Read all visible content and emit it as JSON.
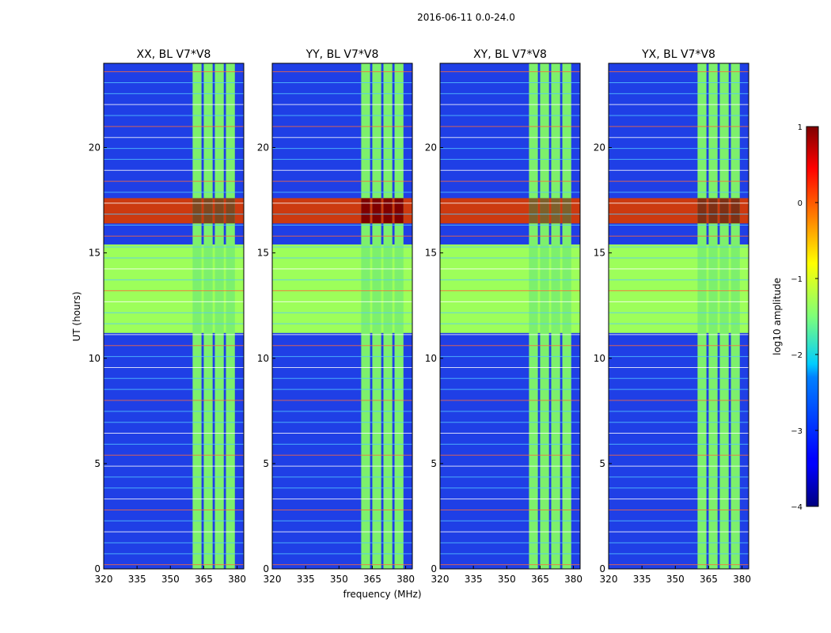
{
  "figure": {
    "suptitle": "2016-06-11 0.0-24.0"
  },
  "chart_data": {
    "type": "heatmap",
    "shared": {
      "xlabel": "frequency (MHz)",
      "ylabel": "UT (hours)",
      "xlim": [
        320,
        383
      ],
      "ylim": [
        0,
        24
      ],
      "xticks": [
        320,
        335,
        350,
        365,
        380
      ],
      "yticks": [
        0,
        5,
        10,
        15,
        20
      ],
      "channel_blocks_mhz": [
        [
          360,
          364
        ],
        [
          365,
          369
        ],
        [
          370,
          374
        ],
        [
          375,
          379
        ]
      ],
      "band_hours": [
        [
          11.2,
          15.4
        ],
        [
          16.4,
          17.6
        ]
      ]
    },
    "panels": [
      {
        "title": "XX, BL V7*V8",
        "strong": 0.7
      },
      {
        "title": "YY, BL V7*V8",
        "strong": 1.0
      },
      {
        "title": "XY, BL V7*V8",
        "strong": 0.6
      },
      {
        "title": "YX, BL V7*V8",
        "strong": 0.8
      }
    ],
    "colorbar": {
      "label": "log10 amplitude",
      "range": [
        -4,
        1
      ],
      "ticks": [
        1,
        0,
        -1,
        -2,
        -3,
        -4
      ],
      "tick_labels": [
        "1",
        "0",
        "−1",
        "−2",
        "−3",
        "−4"
      ],
      "colormap": "jet"
    }
  }
}
